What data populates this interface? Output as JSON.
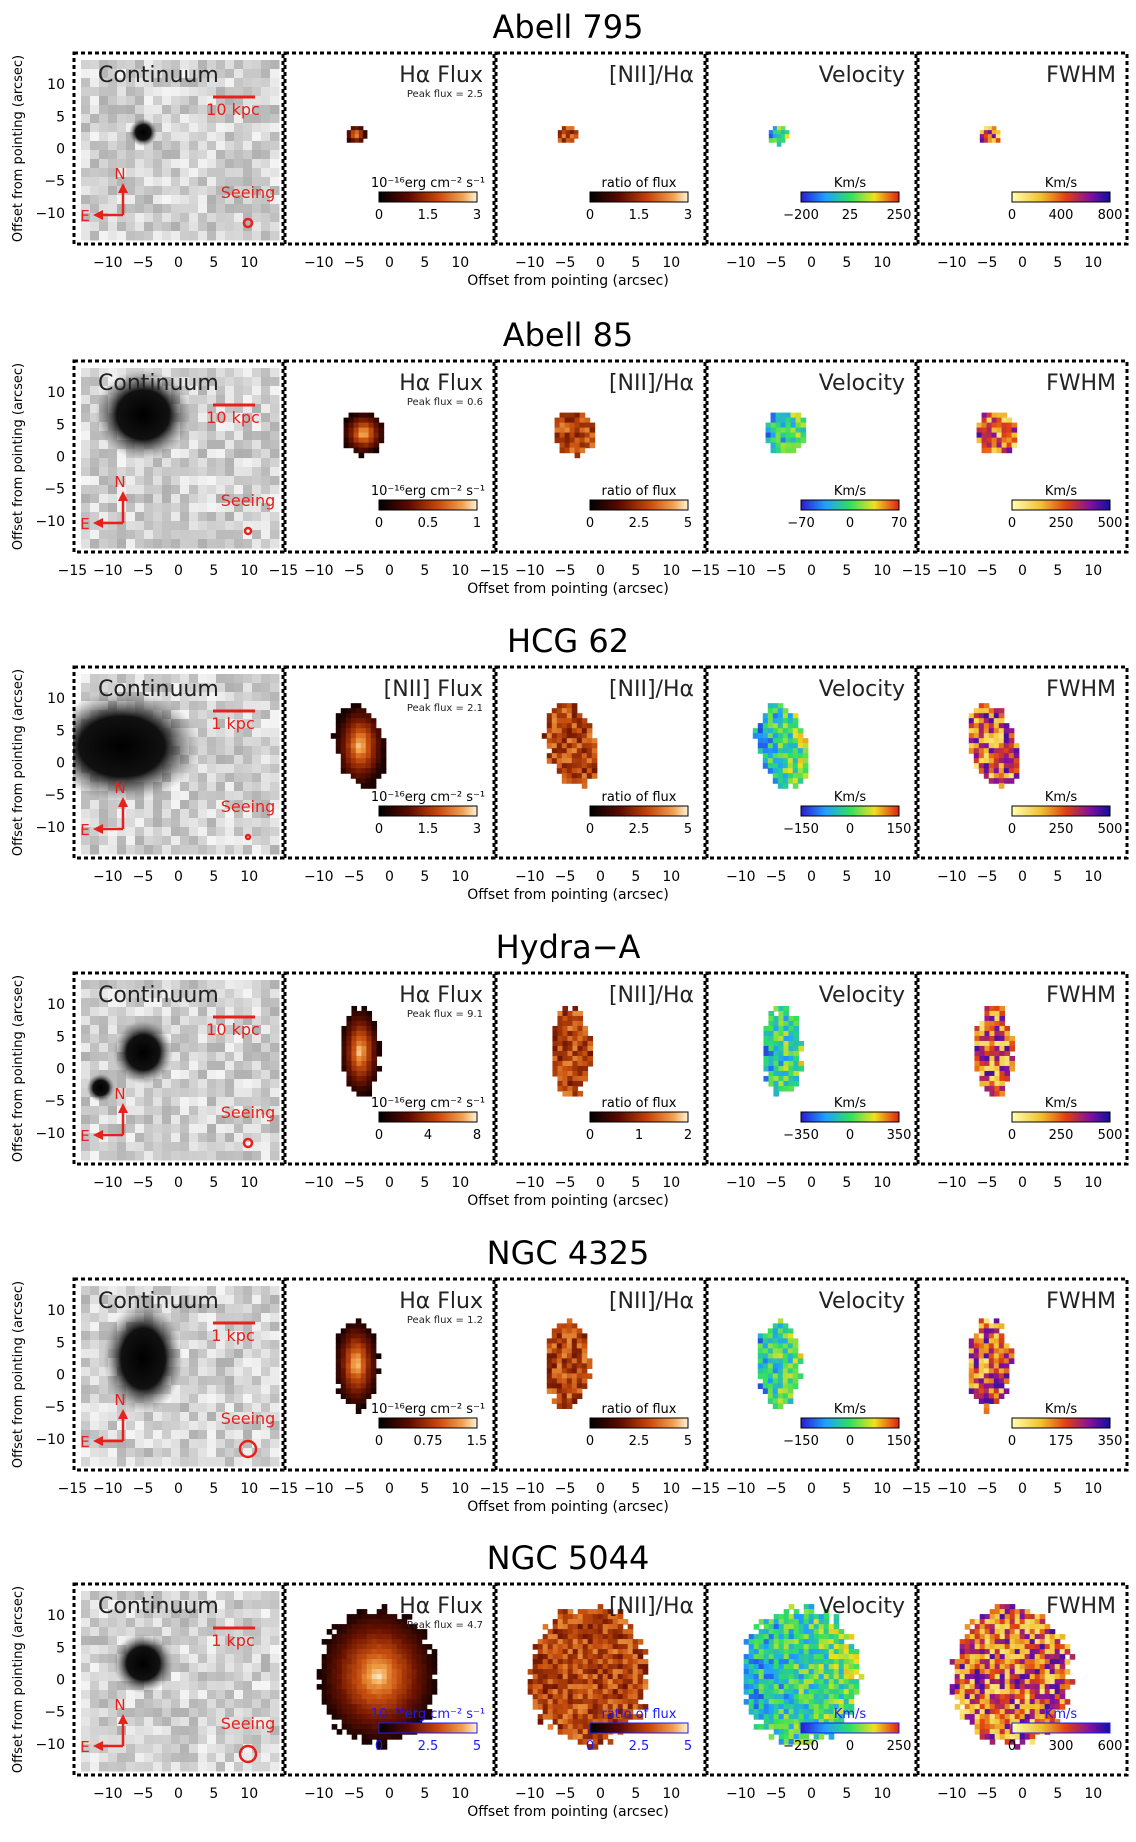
{
  "figure": {
    "ylabel": "Offset from pointing (arcsec)",
    "xlabel": "Offset from pointing (arcsec)",
    "panel_titles": [
      "Continuum",
      "Hα Flux",
      "[NII]/Hα",
      "Velocity",
      "FWHM"
    ],
    "compass": {
      "north": "N",
      "east": "E"
    },
    "seeing_label": "Seeing",
    "peak_prefix": "Peak flux = ",
    "cb_labels": {
      "flux": "10⁻¹⁶erg cm⁻² s⁻¹",
      "ratio": "ratio of flux",
      "vel": "Km/s",
      "fwhm": "Km/s"
    },
    "colors": {
      "annotation": "#e8201c",
      "frame": "#000000",
      "cb_label_ngc5044": "#1a1aff"
    }
  },
  "rows": [
    {
      "name": "Abell 795",
      "flux_title": "Hα Flux",
      "scale": "10 kpc",
      "peak_flux": "2.5",
      "xticks": [
        "−10",
        "−5",
        "0",
        "5",
        "10"
      ],
      "colorbar_ticks": {
        "flux": [
          "0",
          "1.5",
          "3"
        ],
        "ratio": [
          "0",
          "1.5",
          "3"
        ],
        "vel": [
          "−200",
          "25",
          "250"
        ],
        "fwhm": [
          "0",
          "400",
          "800"
        ]
      }
    },
    {
      "name": "Abell 85",
      "flux_title": "Hα Flux",
      "scale": "10 kpc",
      "peak_flux": "0.6",
      "xticks": [
        "−15",
        "−10",
        "−5",
        "0",
        "5",
        "10"
      ],
      "colorbar_ticks": {
        "flux": [
          "0",
          "0.5",
          "1"
        ],
        "ratio": [
          "0",
          "2.5",
          "5"
        ],
        "vel": [
          "−70",
          "0",
          "70"
        ],
        "fwhm": [
          "0",
          "250",
          "500"
        ]
      }
    },
    {
      "name": "HCG 62",
      "flux_title": "[NII] Flux",
      "scale": "1 kpc",
      "peak_flux": "2.1",
      "xticks": [
        "−10",
        "−5",
        "0",
        "5",
        "10"
      ],
      "colorbar_ticks": {
        "flux": [
          "0",
          "1.5",
          "3"
        ],
        "ratio": [
          "0",
          "2.5",
          "5"
        ],
        "vel": [
          "−150",
          "0",
          "150"
        ],
        "fwhm": [
          "0",
          "250",
          "500"
        ]
      }
    },
    {
      "name": "Hydra−A",
      "flux_title": "Hα Flux",
      "scale": "10 kpc",
      "peak_flux": "9.1",
      "xticks": [
        "−10",
        "−5",
        "0",
        "5",
        "10"
      ],
      "colorbar_ticks": {
        "flux": [
          "0",
          "4",
          "8"
        ],
        "ratio": [
          "0",
          "1",
          "2"
        ],
        "vel": [
          "−350",
          "0",
          "350"
        ],
        "fwhm": [
          "0",
          "250",
          "500"
        ]
      }
    },
    {
      "name": "NGC 4325",
      "flux_title": "Hα Flux",
      "scale": "1 kpc",
      "peak_flux": "1.2",
      "xticks": [
        "−15",
        "−10",
        "−5",
        "0",
        "5",
        "10"
      ],
      "colorbar_ticks": {
        "flux": [
          "0",
          "0.75",
          "1.5"
        ],
        "ratio": [
          "0",
          "2.5",
          "5"
        ],
        "vel": [
          "−150",
          "0",
          "150"
        ],
        "fwhm": [
          "0",
          "175",
          "350"
        ]
      }
    },
    {
      "name": "NGC 5044",
      "flux_title": "Hα Flux",
      "scale": "1 kpc",
      "peak_flux": "4.7",
      "xticks": [
        "−10",
        "−5",
        "0",
        "5",
        "10"
      ],
      "colorbar_ticks": {
        "flux": [
          "0",
          "2.5",
          "5"
        ],
        "ratio": [
          "0",
          "2.5",
          "5"
        ],
        "vel": [
          "−250",
          "0",
          "250"
        ],
        "fwhm": [
          "0",
          "300",
          "600"
        ]
      }
    }
  ],
  "yticks": [
    "10",
    "5",
    "0",
    "−5",
    "−10"
  ]
}
